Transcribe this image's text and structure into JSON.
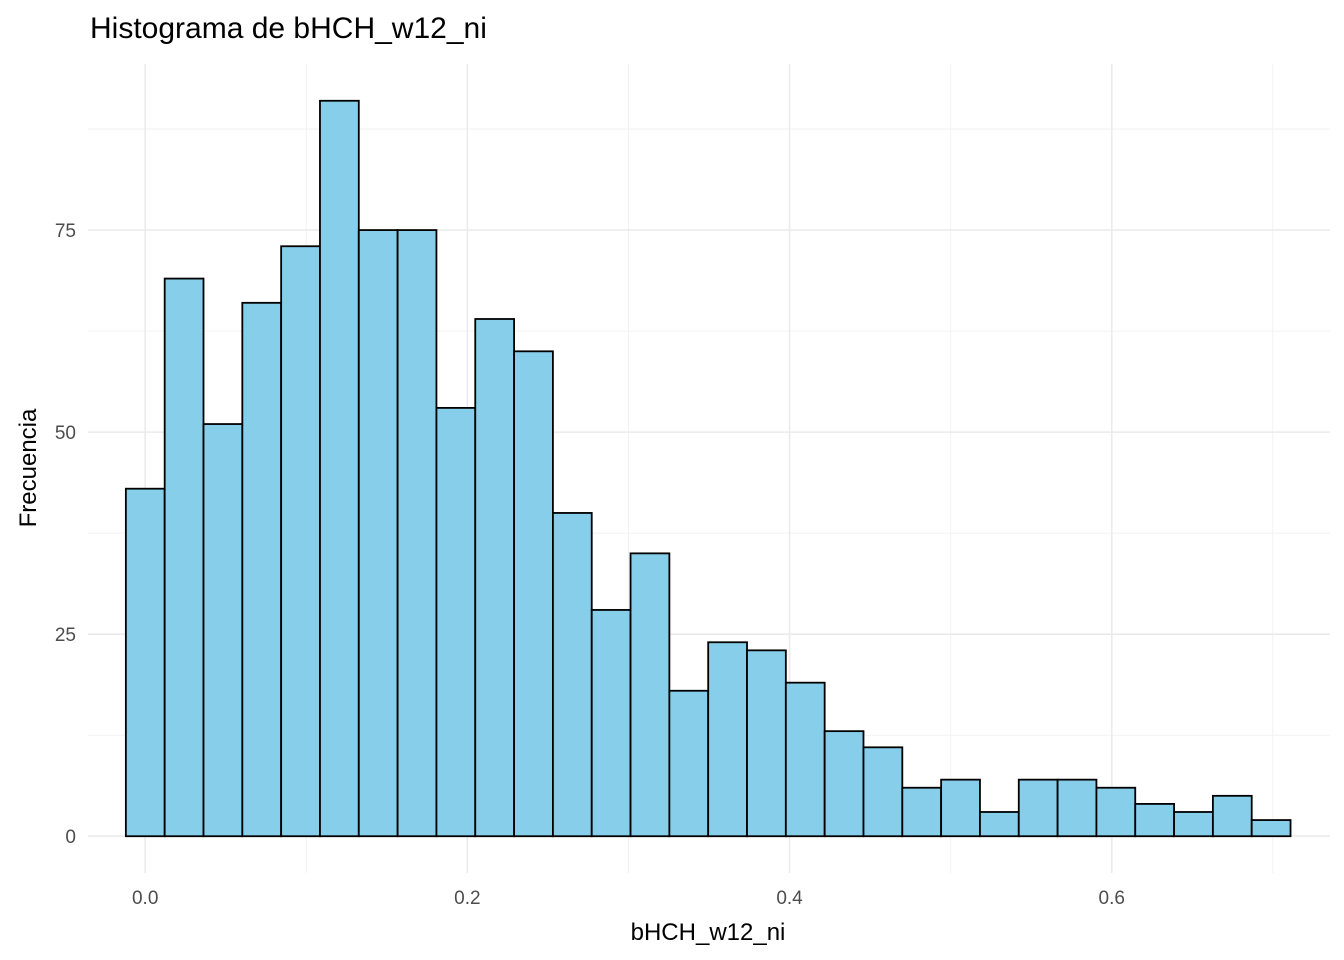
{
  "chart_data": {
    "type": "bar",
    "title": "Histograma de bHCH_w12_ni",
    "xlabel": "bHCH_w12_ni",
    "ylabel": "Frecuencia",
    "fill_color": "#87CEEB",
    "border_color": "#000000",
    "grid": true,
    "xlim": [
      -0.0355,
      0.7355
    ],
    "ylim": [
      -4.55,
      95.55
    ],
    "x_ticks": [
      0.0,
      0.2,
      0.4,
      0.6
    ],
    "x_tick_labels": [
      "0.0",
      "0.2",
      "0.4",
      "0.6"
    ],
    "y_ticks": [
      0,
      25,
      50,
      75
    ],
    "y_tick_labels": [
      "0",
      "25",
      "50",
      "75"
    ],
    "bin_width": 0.0241,
    "bin_start": -0.012,
    "values": [
      43,
      69,
      51,
      66,
      73,
      91,
      75,
      75,
      53,
      64,
      60,
      40,
      28,
      35,
      18,
      24,
      23,
      19,
      13,
      11,
      6,
      7,
      3,
      7,
      7,
      6,
      4,
      3,
      5,
      2
    ]
  }
}
